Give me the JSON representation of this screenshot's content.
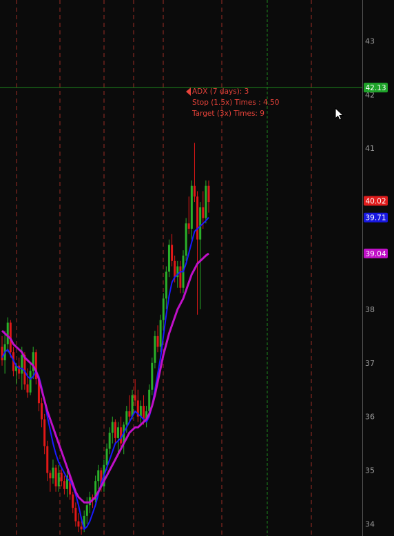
{
  "chart_data": {
    "type": "candlestick",
    "y_axis": {
      "ticks": [
        34,
        35,
        36,
        37,
        38,
        39,
        40,
        41,
        42,
        43
      ],
      "range": [
        33.8,
        43.8
      ],
      "side": "right"
    },
    "grid": {
      "vertical_dashed": true
    },
    "candles": [
      {
        "o": 37.3,
        "h": 37.5,
        "l": 36.95,
        "c": 37.05
      },
      {
        "o": 37.05,
        "h": 37.6,
        "l": 36.8,
        "c": 37.35
      },
      {
        "o": 37.35,
        "h": 37.85,
        "l": 37.2,
        "c": 37.75
      },
      {
        "o": 37.75,
        "h": 37.8,
        "l": 37.1,
        "c": 37.2
      },
      {
        "o": 37.2,
        "h": 37.3,
        "l": 36.75,
        "c": 36.85
      },
      {
        "o": 36.85,
        "h": 37.0,
        "l": 36.6,
        "c": 36.95
      },
      {
        "o": 36.95,
        "h": 37.1,
        "l": 36.7,
        "c": 36.8
      },
      {
        "o": 36.8,
        "h": 37.3,
        "l": 36.5,
        "c": 37.15
      },
      {
        "o": 37.15,
        "h": 37.2,
        "l": 36.5,
        "c": 36.6
      },
      {
        "o": 36.6,
        "h": 36.9,
        "l": 36.35,
        "c": 36.45
      },
      {
        "o": 36.45,
        "h": 37.0,
        "l": 36.4,
        "c": 36.85
      },
      {
        "o": 36.85,
        "h": 37.3,
        "l": 36.7,
        "c": 37.2
      },
      {
        "o": 37.2,
        "h": 37.25,
        "l": 36.6,
        "c": 36.7
      },
      {
        "o": 36.7,
        "h": 36.75,
        "l": 36.1,
        "c": 36.25
      },
      {
        "o": 36.25,
        "h": 36.35,
        "l": 35.8,
        "c": 35.95
      },
      {
        "o": 35.95,
        "h": 36.05,
        "l": 35.3,
        "c": 35.45
      },
      {
        "o": 35.45,
        "h": 35.55,
        "l": 34.8,
        "c": 34.95
      },
      {
        "o": 34.95,
        "h": 35.0,
        "l": 34.6,
        "c": 34.85
      },
      {
        "o": 34.85,
        "h": 35.2,
        "l": 34.75,
        "c": 35.05
      },
      {
        "o": 35.05,
        "h": 35.1,
        "l": 34.6,
        "c": 34.7
      },
      {
        "o": 34.7,
        "h": 35.1,
        "l": 34.6,
        "c": 34.95
      },
      {
        "o": 34.95,
        "h": 35.05,
        "l": 34.7,
        "c": 34.8
      },
      {
        "o": 34.8,
        "h": 34.9,
        "l": 34.55,
        "c": 34.65
      },
      {
        "o": 34.65,
        "h": 35.0,
        "l": 34.5,
        "c": 34.9
      },
      {
        "o": 34.9,
        "h": 34.95,
        "l": 34.45,
        "c": 34.55
      },
      {
        "o": 34.55,
        "h": 34.6,
        "l": 34.2,
        "c": 34.3
      },
      {
        "o": 34.3,
        "h": 34.4,
        "l": 33.95,
        "c": 34.05
      },
      {
        "o": 34.05,
        "h": 34.2,
        "l": 33.85,
        "c": 33.95
      },
      {
        "o": 33.95,
        "h": 34.05,
        "l": 33.8,
        "c": 33.9
      },
      {
        "o": 33.9,
        "h": 34.25,
        "l": 33.85,
        "c": 34.15
      },
      {
        "o": 34.15,
        "h": 34.5,
        "l": 34.0,
        "c": 34.35
      },
      {
        "o": 34.35,
        "h": 34.6,
        "l": 34.2,
        "c": 34.5
      },
      {
        "o": 34.5,
        "h": 34.55,
        "l": 34.3,
        "c": 34.45
      },
      {
        "o": 34.45,
        "h": 34.9,
        "l": 34.4,
        "c": 34.8
      },
      {
        "o": 34.8,
        "h": 35.1,
        "l": 34.65,
        "c": 35.0
      },
      {
        "o": 35.0,
        "h": 35.05,
        "l": 34.6,
        "c": 34.7
      },
      {
        "o": 34.7,
        "h": 35.2,
        "l": 34.6,
        "c": 35.1
      },
      {
        "o": 35.1,
        "h": 35.5,
        "l": 35.0,
        "c": 35.4
      },
      {
        "o": 35.4,
        "h": 35.8,
        "l": 35.3,
        "c": 35.7
      },
      {
        "o": 35.7,
        "h": 36.0,
        "l": 35.5,
        "c": 35.9
      },
      {
        "o": 35.9,
        "h": 35.95,
        "l": 35.5,
        "c": 35.6
      },
      {
        "o": 35.6,
        "h": 35.9,
        "l": 35.3,
        "c": 35.8
      },
      {
        "o": 35.8,
        "h": 36.0,
        "l": 35.4,
        "c": 35.5
      },
      {
        "o": 35.5,
        "h": 35.9,
        "l": 35.3,
        "c": 35.85
      },
      {
        "o": 35.85,
        "h": 36.2,
        "l": 35.7,
        "c": 36.1
      },
      {
        "o": 36.1,
        "h": 36.4,
        "l": 35.9,
        "c": 36.0
      },
      {
        "o": 36.0,
        "h": 36.5,
        "l": 35.95,
        "c": 36.4
      },
      {
        "o": 36.4,
        "h": 36.7,
        "l": 36.2,
        "c": 36.3
      },
      {
        "o": 36.3,
        "h": 36.5,
        "l": 35.9,
        "c": 36.0
      },
      {
        "o": 36.0,
        "h": 36.3,
        "l": 35.85,
        "c": 36.2
      },
      {
        "o": 36.2,
        "h": 36.4,
        "l": 35.85,
        "c": 35.95
      },
      {
        "o": 35.95,
        "h": 36.2,
        "l": 35.8,
        "c": 36.1
      },
      {
        "o": 36.1,
        "h": 36.6,
        "l": 36.0,
        "c": 36.5
      },
      {
        "o": 36.5,
        "h": 37.1,
        "l": 36.4,
        "c": 37.0
      },
      {
        "o": 37.0,
        "h": 37.6,
        "l": 36.9,
        "c": 37.5
      },
      {
        "o": 37.5,
        "h": 37.7,
        "l": 37.2,
        "c": 37.3
      },
      {
        "o": 37.3,
        "h": 37.9,
        "l": 37.2,
        "c": 37.8
      },
      {
        "o": 37.8,
        "h": 38.3,
        "l": 37.6,
        "c": 38.2
      },
      {
        "o": 38.2,
        "h": 38.8,
        "l": 38.0,
        "c": 38.7
      },
      {
        "o": 38.7,
        "h": 39.3,
        "l": 38.6,
        "c": 39.2
      },
      {
        "o": 39.2,
        "h": 39.4,
        "l": 38.8,
        "c": 38.9
      },
      {
        "o": 38.9,
        "h": 39.0,
        "l": 38.5,
        "c": 38.6
      },
      {
        "o": 38.6,
        "h": 38.9,
        "l": 38.4,
        "c": 38.8
      },
      {
        "o": 38.8,
        "h": 38.9,
        "l": 38.3,
        "c": 38.4
      },
      {
        "o": 38.4,
        "h": 39.1,
        "l": 38.3,
        "c": 39.0
      },
      {
        "o": 39.0,
        "h": 39.7,
        "l": 38.9,
        "c": 39.6
      },
      {
        "o": 39.6,
        "h": 40.1,
        "l": 39.4,
        "c": 39.5
      },
      {
        "o": 39.5,
        "h": 40.4,
        "l": 39.3,
        "c": 40.3
      },
      {
        "o": 40.3,
        "h": 41.1,
        "l": 40.0,
        "c": 40.1
      },
      {
        "o": 40.1,
        "h": 40.2,
        "l": 37.9,
        "c": 39.3
      },
      {
        "o": 39.3,
        "h": 40.0,
        "l": 38.0,
        "c": 39.9
      },
      {
        "o": 39.9,
        "h": 40.2,
        "l": 39.5,
        "c": 39.7
      },
      {
        "o": 39.7,
        "h": 40.4,
        "l": 39.6,
        "c": 40.3
      },
      {
        "o": 40.3,
        "h": 40.4,
        "l": 39.8,
        "c": 40.0
      }
    ],
    "overlays": [
      {
        "color": "#1a1aff",
        "values": [
          37.1,
          37.2,
          37.25,
          37.15,
          37.05,
          36.95,
          36.9,
          36.9,
          36.85,
          36.75,
          36.7,
          36.75,
          36.85,
          36.75,
          36.55,
          36.3,
          36.0,
          35.75,
          35.5,
          35.3,
          35.15,
          35.05,
          34.95,
          34.85,
          34.8,
          34.7,
          34.55,
          34.35,
          34.1,
          33.9,
          33.95,
          34.05,
          34.2,
          34.35,
          34.55,
          34.75,
          34.9,
          35.05,
          35.2,
          35.35,
          35.5,
          35.55,
          35.6,
          35.7,
          35.8,
          35.9,
          36.0,
          36.1,
          36.05,
          36.0,
          35.95,
          35.9,
          36.0,
          36.2,
          36.5,
          36.8,
          37.1,
          37.5,
          37.9,
          38.25,
          38.5,
          38.6,
          38.65,
          38.7,
          38.7,
          38.85,
          39.05,
          39.25,
          39.45,
          39.5,
          39.55,
          39.6,
          39.65,
          39.71
        ]
      },
      {
        "color": "#c010c8",
        "values": [
          37.6,
          37.55,
          37.5,
          37.45,
          37.35,
          37.3,
          37.25,
          37.2,
          37.1,
          37.05,
          37.0,
          36.95,
          36.85,
          36.7,
          36.5,
          36.3,
          36.1,
          35.95,
          35.8,
          35.65,
          35.5,
          35.35,
          35.2,
          35.05,
          34.9,
          34.75,
          34.6,
          34.5,
          34.45,
          34.4,
          34.4,
          34.4,
          34.45,
          34.5,
          34.6,
          34.7,
          34.8,
          34.9,
          35.0,
          35.1,
          35.2,
          35.3,
          35.4,
          35.5,
          35.6,
          35.7,
          35.75,
          35.8,
          35.8,
          35.85,
          35.9,
          35.95,
          36.05,
          36.2,
          36.4,
          36.65,
          36.9,
          37.15,
          37.35,
          37.55,
          37.7,
          37.85,
          38.0,
          38.1,
          38.2,
          38.35,
          38.5,
          38.65,
          38.75,
          38.85,
          38.9,
          38.95,
          39.0,
          39.04
        ]
      }
    ],
    "price_labels": [
      {
        "text": "42.13",
        "value": 42.13,
        "color": "#1fa32a"
      },
      {
        "text": "40.02",
        "value": 40.02,
        "color": "#e01c1c"
      },
      {
        "text": "39.71",
        "value": 39.71,
        "color": "#1818e0"
      },
      {
        "text": "39.04",
        "value": 39.04,
        "color": "#c010c8"
      }
    ],
    "crosshair_value": 42.13,
    "annotations": [
      "ADX (7 days): 3",
      "Stop (1.5x) Times : 4.50",
      "Target (3x) Times: 9"
    ]
  },
  "colors": {
    "up": "#2ab02a",
    "down": "#e01818",
    "grid": "#b8322a",
    "crosshair": "#1d8a1d",
    "axis": "#555555"
  },
  "icons": {
    "cursor": "mouse-pointer-icon",
    "marker": "triangle-left-icon"
  }
}
